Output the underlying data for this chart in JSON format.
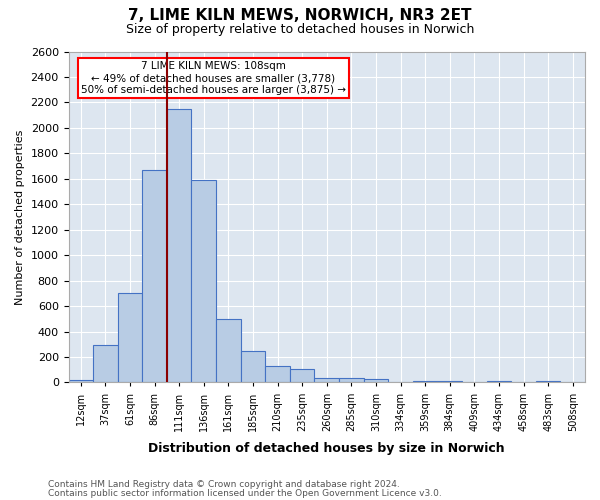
{
  "title": "7, LIME KILN MEWS, NORWICH, NR3 2ET",
  "subtitle": "Size of property relative to detached houses in Norwich",
  "xlabel": "Distribution of detached houses by size in Norwich",
  "ylabel": "Number of detached properties",
  "bar_labels": [
    "12sqm",
    "37sqm",
    "61sqm",
    "86sqm",
    "111sqm",
    "136sqm",
    "161sqm",
    "185sqm",
    "210sqm",
    "235sqm",
    "260sqm",
    "285sqm",
    "310sqm",
    "334sqm",
    "359sqm",
    "384sqm",
    "409sqm",
    "434sqm",
    "458sqm",
    "483sqm",
    "508sqm"
  ],
  "bar_values": [
    20,
    297,
    700,
    1670,
    2150,
    1590,
    500,
    245,
    130,
    105,
    35,
    35,
    25,
    0,
    10,
    10,
    5,
    10,
    0,
    15,
    0
  ],
  "bar_color": "#b8cce4",
  "bar_edge_color": "#4472c4",
  "property_line_label": "7 LIME KILN MEWS: 108sqm",
  "annotation_line1": "← 49% of detached houses are smaller (3,778)",
  "annotation_line2": "50% of semi-detached houses are larger (3,875) →",
  "annotation_box_color": "white",
  "annotation_box_edge_color": "red",
  "vline_color": "#8b0000",
  "footnote1": "Contains HM Land Registry data © Crown copyright and database right 2024.",
  "footnote2": "Contains public sector information licensed under the Open Government Licence v3.0.",
  "ylim": [
    0,
    2600
  ],
  "yticks": [
    0,
    200,
    400,
    600,
    800,
    1000,
    1200,
    1400,
    1600,
    1800,
    2000,
    2200,
    2400,
    2600
  ],
  "figsize": [
    6.0,
    5.0
  ],
  "dpi": 100
}
